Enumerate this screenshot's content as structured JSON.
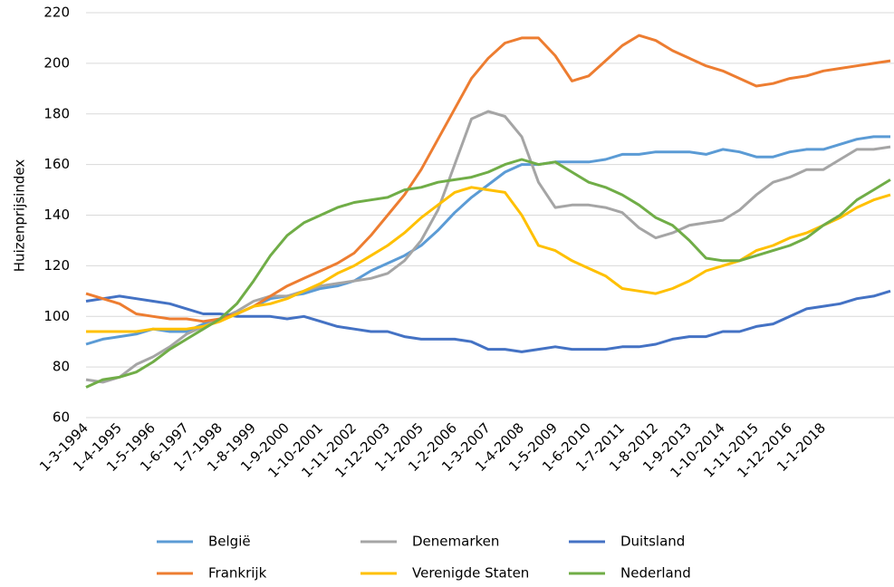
{
  "chart_data": {
    "type": "line",
    "ylabel": "Huizenprijsindex",
    "categories": [
      "1-3-1994",
      null,
      "1-4-1995",
      null,
      "1-5-1996",
      null,
      "1-6-1997",
      null,
      "1-7-1998",
      null,
      "1-8-1999",
      null,
      "1-9-2000",
      null,
      "1-10-2001",
      null,
      "1-11-2002",
      null,
      "1-12-2003",
      null,
      "1-1-2005",
      null,
      "1-2-2006",
      null,
      "1-3-2007",
      null,
      "1-4-2008",
      null,
      "1-5-2009",
      null,
      "1-6-2010",
      null,
      "1-7-2011",
      null,
      "1-8-2012",
      null,
      "1-9-2013",
      null,
      "1-10-2014",
      null,
      "1-11-2015",
      null,
      "1-12-2016",
      null,
      "1-1-2018",
      null,
      null,
      null,
      null
    ],
    "series": [
      {
        "name": "België",
        "color": "#5b9bd5",
        "values": [
          89,
          91,
          92,
          93,
          95,
          94,
          94,
          97,
          99,
          101,
          104,
          107,
          108,
          109,
          111,
          112,
          114,
          118,
          121,
          124,
          128,
          134,
          141,
          147,
          152,
          157,
          160,
          160,
          161,
          161,
          161,
          162,
          164,
          164,
          165,
          165,
          165,
          164,
          166,
          165,
          163,
          163,
          165,
          166,
          166,
          168,
          170,
          171,
          171
        ]
      },
      {
        "name": "Denemarken",
        "color": "#a5a5a5",
        "values": [
          75,
          74,
          76,
          81,
          84,
          88,
          93,
          96,
          99,
          102,
          106,
          108,
          108,
          110,
          112,
          113,
          114,
          115,
          117,
          122,
          130,
          142,
          160,
          178,
          181,
          179,
          171,
          153,
          143,
          144,
          144,
          143,
          141,
          135,
          131,
          133,
          136,
          137,
          138,
          142,
          148,
          153,
          155,
          158,
          158,
          162,
          166,
          166,
          167
        ]
      },
      {
        "name": "Duitsland",
        "color": "#4472c4",
        "values": [
          106,
          107,
          108,
          107,
          106,
          105,
          103,
          101,
          101,
          100,
          100,
          100,
          99,
          100,
          98,
          96,
          95,
          94,
          94,
          92,
          91,
          91,
          91,
          90,
          87,
          87,
          86,
          87,
          88,
          87,
          87,
          87,
          88,
          88,
          89,
          91,
          92,
          92,
          94,
          94,
          96,
          97,
          100,
          103,
          104,
          105,
          107,
          108,
          110
        ]
      },
      {
        "name": "Frankrijk",
        "color": "#ed7d31",
        "values": [
          109,
          107,
          105,
          101,
          100,
          99,
          99,
          98,
          99,
          101,
          104,
          108,
          112,
          115,
          118,
          121,
          125,
          132,
          140,
          148,
          158,
          170,
          182,
          194,
          202,
          208,
          210,
          210,
          203,
          193,
          195,
          201,
          207,
          211,
          209,
          205,
          202,
          199,
          197,
          194,
          191,
          192,
          194,
          195,
          197,
          198,
          199,
          200,
          201
        ]
      },
      {
        "name": "Verenigde Staten",
        "color": "#ffc000",
        "values": [
          94,
          94,
          94,
          94,
          95,
          95,
          95,
          96,
          98,
          101,
          104,
          105,
          107,
          110,
          113,
          117,
          120,
          124,
          128,
          133,
          139,
          144,
          149,
          151,
          150,
          149,
          140,
          128,
          126,
          122,
          119,
          116,
          111,
          110,
          109,
          111,
          114,
          118,
          120,
          122,
          126,
          128,
          131,
          133,
          136,
          139,
          143,
          146,
          148
        ]
      },
      {
        "name": "Nederland",
        "color": "#70ad47",
        "values": [
          72,
          75,
          76,
          78,
          82,
          87,
          91,
          95,
          99,
          105,
          114,
          124,
          132,
          137,
          140,
          143,
          145,
          146,
          147,
          150,
          151,
          153,
          154,
          155,
          157,
          160,
          162,
          160,
          161,
          157,
          153,
          151,
          148,
          144,
          139,
          136,
          130,
          123,
          122,
          122,
          124,
          126,
          128,
          131,
          136,
          140,
          146,
          150,
          154
        ]
      }
    ],
    "ylim": [
      60,
      220
    ],
    "yticks": [
      60,
      80,
      100,
      120,
      140,
      160,
      180,
      200,
      220
    ],
    "grid": true
  }
}
